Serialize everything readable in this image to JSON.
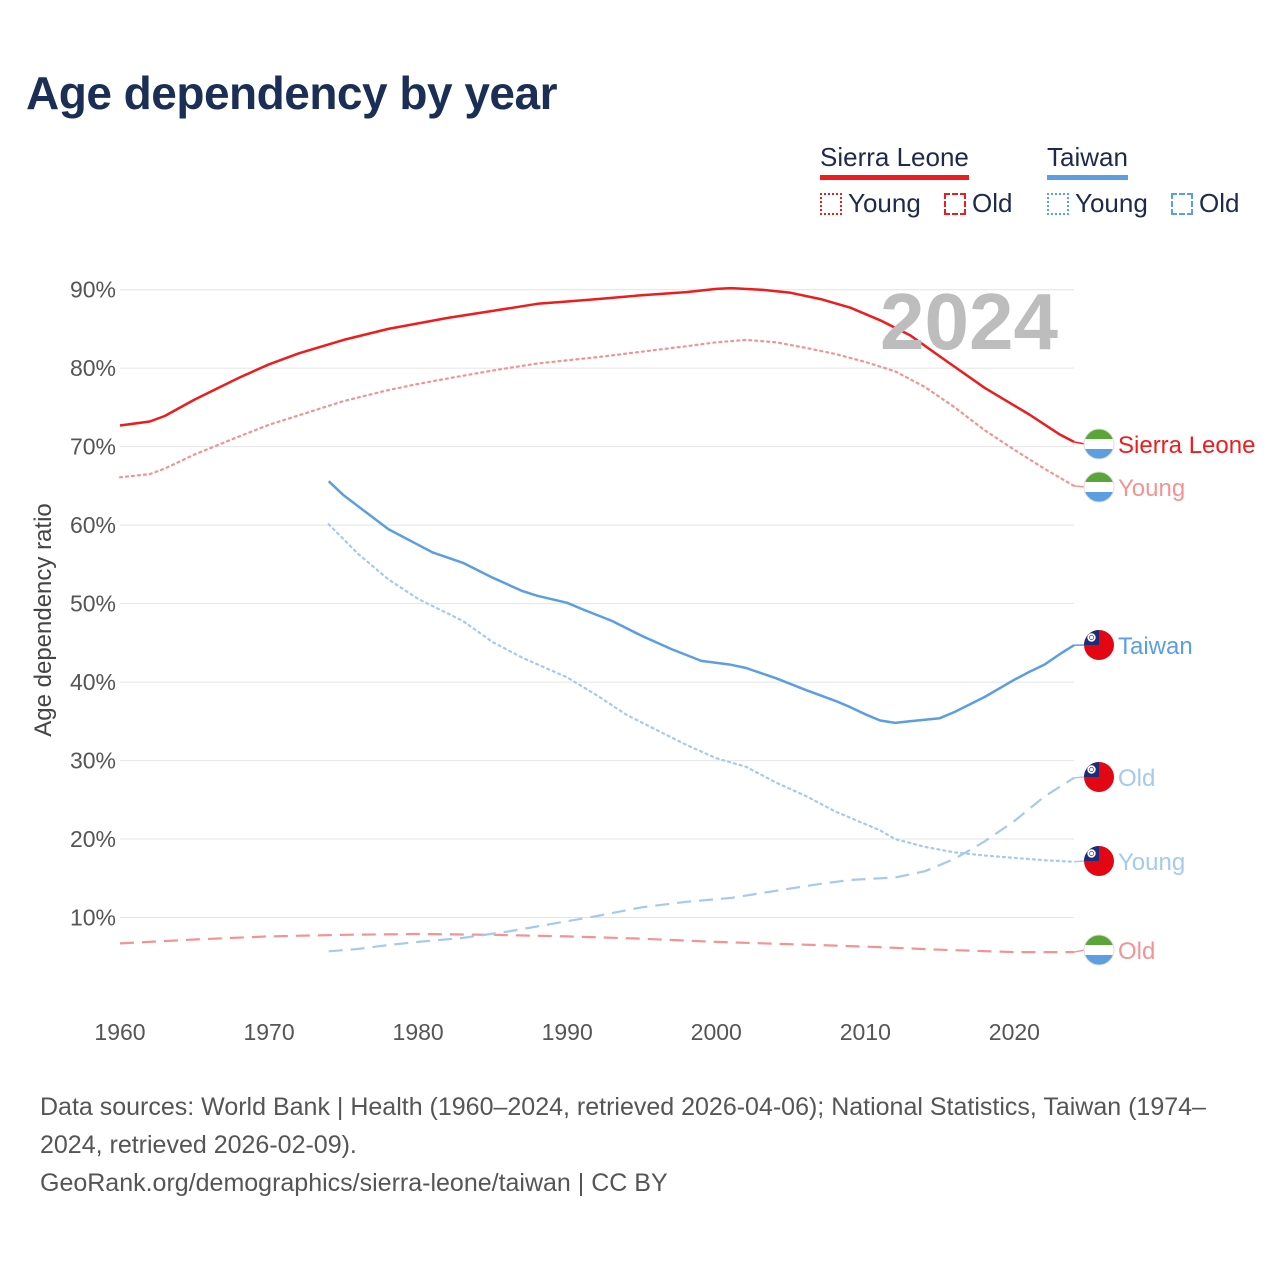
{
  "header": {
    "title": "Age dependency by year"
  },
  "legend": [
    {
      "name": "Sierra Leone",
      "color": "#ee1c1c",
      "items": [
        {
          "label": "Young",
          "style": "dotted"
        },
        {
          "label": "Old",
          "style": "dashed"
        }
      ]
    },
    {
      "name": "Taiwan",
      "color": "#5b9ee1",
      "items": [
        {
          "label": "Young",
          "style": "dotted"
        },
        {
          "label": "Old",
          "style": "dashed"
        }
      ]
    }
  ],
  "year_display": "2024",
  "footer": {
    "sources": "Data sources: World Bank | Health (1960–2024, retrieved 2026-04-06); National Statistics, Taiwan (1974–2024, retrieved 2026-02-09).",
    "credit": "GeoRank.org/demographics/sierra-leone/taiwan | CC BY"
  },
  "chart_data": {
    "type": "line",
    "title": "Age dependency by year",
    "xlabel": "",
    "ylabel": "Age dependency ratio",
    "xlim": [
      1960,
      2024
    ],
    "ylim": [
      0,
      92
    ],
    "x_ticks": [
      1960,
      1970,
      1980,
      1990,
      2000,
      2010,
      2020
    ],
    "y_ticks": [
      10,
      20,
      30,
      40,
      50,
      60,
      70,
      80,
      90
    ],
    "y_tick_labels": [
      "10%",
      "20%",
      "30%",
      "40%",
      "50%",
      "60%",
      "70%",
      "80%",
      "90%"
    ],
    "x_tick_labels": [
      "1960",
      "1970",
      "1980",
      "1990",
      "2000",
      "2010",
      "2020"
    ],
    "series": [
      {
        "id": "sl-total",
        "name": "Sierra Leone",
        "end_label": "Sierra Leone",
        "country": "Sierra Leone",
        "color": "#ee1c1c",
        "style": "solid",
        "x": [
          1960,
          1962,
          1963,
          1965,
          1968,
          1970,
          1972,
          1975,
          1978,
          1980,
          1982,
          1985,
          1988,
          1990,
          1992,
          1995,
          1998,
          2000,
          2001,
          2003,
          2005,
          2007,
          2009,
          2011,
          2013,
          2015,
          2018,
          2021,
          2023,
          2024
        ],
        "y": [
          72.7,
          73.2,
          73.9,
          76.0,
          78.8,
          80.5,
          81.9,
          83.6,
          85.0,
          85.7,
          86.4,
          87.3,
          88.2,
          88.5,
          88.8,
          89.3,
          89.7,
          90.1,
          90.2,
          90.0,
          89.6,
          88.8,
          87.7,
          86.1,
          84.2,
          81.5,
          77.5,
          74.1,
          71.6,
          70.6
        ]
      },
      {
        "id": "sl-young",
        "name": "Young",
        "end_label": "Young",
        "country": "Sierra Leone",
        "color": "#f39393",
        "style": "dotted",
        "x": [
          1960,
          1962,
          1963,
          1965,
          1968,
          1970,
          1972,
          1975,
          1978,
          1980,
          1982,
          1985,
          1988,
          1990,
          1992,
          1995,
          1998,
          2000,
          2002,
          2004,
          2006,
          2008,
          2010,
          2012,
          2014,
          2016,
          2018,
          2020,
          2022,
          2024
        ],
        "y": [
          66.1,
          66.5,
          67.2,
          69.0,
          71.3,
          72.8,
          74.0,
          75.8,
          77.2,
          78.0,
          78.7,
          79.7,
          80.6,
          81.0,
          81.4,
          82.1,
          82.8,
          83.3,
          83.6,
          83.3,
          82.6,
          81.8,
          80.8,
          79.6,
          77.6,
          75.0,
          72.1,
          69.6,
          67.2,
          65.0
        ]
      },
      {
        "id": "sl-old",
        "name": "Old",
        "end_label": "Old",
        "country": "Sierra Leone",
        "color": "#f39393",
        "style": "dashed",
        "x": [
          1960,
          1965,
          1970,
          1975,
          1980,
          1985,
          1990,
          1995,
          2000,
          2005,
          2010,
          2015,
          2020,
          2024
        ],
        "y": [
          6.7,
          7.2,
          7.6,
          7.8,
          7.9,
          7.8,
          7.6,
          7.3,
          6.9,
          6.6,
          6.3,
          5.9,
          5.6,
          5.6
        ]
      },
      {
        "id": "tw-total",
        "name": "Taiwan",
        "end_label": "Taiwan",
        "country": "Taiwan",
        "color": "#5b9ee1",
        "style": "solid",
        "x": [
          1974,
          1975,
          1978,
          1980,
          1981,
          1983,
          1985,
          1987,
          1988,
          1990,
          1991,
          1993,
          1995,
          1997,
          1999,
          2001,
          2002,
          2004,
          2006,
          2008,
          2009,
          2010,
          2011,
          2012,
          2013,
          2015,
          2016,
          2018,
          2020,
          2021,
          2022,
          2023,
          2024
        ],
        "y": [
          65.6,
          63.8,
          59.5,
          57.5,
          56.5,
          55.2,
          53.3,
          51.6,
          51.0,
          50.1,
          49.3,
          47.8,
          45.9,
          44.2,
          42.7,
          42.2,
          41.8,
          40.5,
          39.0,
          37.6,
          36.8,
          35.9,
          35.1,
          34.8,
          35.0,
          35.4,
          36.2,
          38.1,
          40.3,
          41.3,
          42.2,
          43.5,
          44.7
        ]
      },
      {
        "id": "tw-young",
        "name": "Young",
        "end_label": "Young",
        "country": "Taiwan",
        "color": "#a6c9ee",
        "style": "dotted",
        "x": [
          1974,
          1976,
          1978,
          1980,
          1983,
          1985,
          1987,
          1990,
          1992,
          1994,
          1996,
          1998,
          2000,
          2002,
          2004,
          2006,
          2008,
          2010,
          2011,
          2012,
          2014,
          2016,
          2018,
          2020,
          2022,
          2024
        ],
        "y": [
          60.1,
          56.3,
          53.1,
          50.6,
          47.8,
          45.1,
          43.1,
          40.6,
          38.3,
          35.8,
          33.9,
          32.0,
          30.3,
          29.2,
          27.2,
          25.5,
          23.5,
          21.9,
          21.1,
          20.0,
          19.0,
          18.3,
          17.9,
          17.6,
          17.3,
          17.1
        ]
      },
      {
        "id": "tw-old",
        "name": "Old",
        "end_label": "Old",
        "country": "Taiwan",
        "color": "#a6c9ee",
        "style": "dashed",
        "x": [
          1974,
          1976,
          1978,
          1980,
          1983,
          1986,
          1989,
          1992,
          1995,
          1998,
          2001,
          2004,
          2007,
          2009,
          2011,
          2012,
          2014,
          2016,
          2018,
          2020,
          2022,
          2024
        ],
        "y": [
          5.7,
          6.0,
          6.5,
          6.9,
          7.4,
          8.2,
          9.2,
          10.2,
          11.3,
          12.0,
          12.5,
          13.4,
          14.3,
          14.8,
          15.0,
          15.1,
          15.9,
          17.5,
          19.7,
          22.3,
          25.4,
          27.8
        ]
      }
    ]
  }
}
